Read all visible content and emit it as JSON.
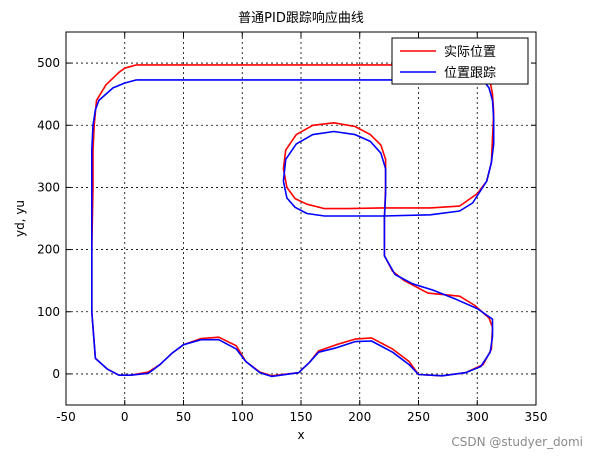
{
  "chart_data": {
    "type": "line",
    "title": "普通PID跟踪响应曲线",
    "xlabel": "x",
    "ylabel": "yd, yu",
    "xlim": [
      -50,
      350
    ],
    "ylim": [
      -50,
      550
    ],
    "xticks": [
      -50,
      0,
      50,
      100,
      150,
      200,
      250,
      300,
      350
    ],
    "yticks": [
      0,
      100,
      200,
      300,
      400,
      500
    ],
    "grid": true,
    "grid_style": "dotted",
    "legend_position": "top-right",
    "series": [
      {
        "name": "实际位置",
        "color": "#ff0000",
        "points": [
          [
            10,
            497
          ],
          [
            60,
            497
          ],
          [
            100,
            497
          ],
          [
            150,
            497
          ],
          [
            200,
            497
          ],
          [
            250,
            497
          ],
          [
            305,
            496
          ],
          [
            310,
            480
          ],
          [
            313,
            450
          ],
          [
            314,
            420
          ],
          [
            313,
            380
          ],
          [
            312,
            340
          ],
          [
            308,
            310
          ],
          [
            300,
            290
          ],
          [
            285,
            270
          ],
          [
            260,
            267
          ],
          [
            220,
            267
          ],
          [
            190,
            266
          ],
          [
            170,
            266
          ],
          [
            155,
            273
          ],
          [
            145,
            282
          ],
          [
            138,
            300
          ],
          [
            135,
            330
          ],
          [
            137,
            360
          ],
          [
            146,
            385
          ],
          [
            160,
            400
          ],
          [
            178,
            404
          ],
          [
            196,
            398
          ],
          [
            209,
            385
          ],
          [
            218,
            368
          ],
          [
            222,
            345
          ],
          [
            222,
            300
          ],
          [
            221,
            250
          ],
          [
            221,
            190
          ],
          [
            228,
            165
          ],
          [
            238,
            150
          ],
          [
            258,
            130
          ],
          [
            285,
            125
          ],
          [
            298,
            110
          ],
          [
            310,
            90
          ],
          [
            313,
            75
          ],
          [
            312,
            40
          ],
          [
            305,
            15
          ],
          [
            290,
            2
          ],
          [
            270,
            -3
          ],
          [
            250,
            -1
          ],
          [
            242,
            20
          ],
          [
            228,
            40
          ],
          [
            210,
            58
          ],
          [
            196,
            56
          ],
          [
            180,
            47
          ],
          [
            165,
            37
          ],
          [
            157,
            18
          ],
          [
            148,
            2
          ],
          [
            125,
            -3
          ],
          [
            115,
            3
          ],
          [
            103,
            20
          ],
          [
            95,
            45
          ],
          [
            80,
            59
          ],
          [
            65,
            57
          ],
          [
            50,
            47
          ],
          [
            40,
            33
          ],
          [
            30,
            15
          ],
          [
            20,
            3
          ],
          [
            5,
            -2
          ],
          [
            -5,
            -2
          ],
          [
            -15,
            8
          ],
          [
            -25,
            25
          ],
          [
            -28,
            100
          ],
          [
            -28,
            200
          ],
          [
            -27,
            300
          ],
          [
            -27,
            360
          ],
          [
            -26,
            400
          ],
          [
            -24,
            440
          ],
          [
            -16,
            465
          ],
          [
            -5,
            485
          ],
          [
            0,
            492
          ]
        ]
      },
      {
        "name": "位置跟踪",
        "color": "#0000ff",
        "points": [
          [
            10,
            473
          ],
          [
            60,
            473
          ],
          [
            100,
            473
          ],
          [
            150,
            473
          ],
          [
            200,
            473
          ],
          [
            250,
            473
          ],
          [
            305,
            473
          ],
          [
            310,
            460
          ],
          [
            313,
            440
          ],
          [
            314,
            410
          ],
          [
            314,
            370
          ],
          [
            312,
            340
          ],
          [
            308,
            310
          ],
          [
            296,
            275
          ],
          [
            285,
            262
          ],
          [
            260,
            256
          ],
          [
            220,
            254
          ],
          [
            190,
            254
          ],
          [
            170,
            254
          ],
          [
            155,
            258
          ],
          [
            145,
            268
          ],
          [
            138,
            283
          ],
          [
            135,
            310
          ],
          [
            137,
            345
          ],
          [
            146,
            370
          ],
          [
            160,
            385
          ],
          [
            178,
            390
          ],
          [
            196,
            385
          ],
          [
            209,
            374
          ],
          [
            218,
            355
          ],
          [
            222,
            330
          ],
          [
            222,
            290
          ],
          [
            221,
            250
          ],
          [
            221,
            190
          ],
          [
            230,
            160
          ],
          [
            245,
            145
          ],
          [
            262,
            135
          ],
          [
            282,
            120
          ],
          [
            300,
            105
          ],
          [
            313,
            88
          ],
          [
            313,
            60
          ],
          [
            311,
            35
          ],
          [
            303,
            12
          ],
          [
            290,
            2
          ],
          [
            270,
            -3
          ],
          [
            250,
            -1
          ],
          [
            242,
            15
          ],
          [
            228,
            35
          ],
          [
            210,
            53
          ],
          [
            196,
            52
          ],
          [
            180,
            42
          ],
          [
            165,
            35
          ],
          [
            157,
            18
          ],
          [
            148,
            2
          ],
          [
            125,
            -4
          ],
          [
            115,
            2
          ],
          [
            103,
            20
          ],
          [
            95,
            40
          ],
          [
            80,
            55
          ],
          [
            65,
            55
          ],
          [
            50,
            47
          ],
          [
            40,
            33
          ],
          [
            30,
            15
          ],
          [
            20,
            1
          ],
          [
            5,
            -2
          ],
          [
            -5,
            -2
          ],
          [
            -15,
            8
          ],
          [
            -25,
            25
          ],
          [
            -28,
            100
          ],
          [
            -28,
            200
          ],
          [
            -28,
            300
          ],
          [
            -28,
            360
          ],
          [
            -27,
            400
          ],
          [
            -25,
            425
          ],
          [
            -22,
            440
          ],
          [
            -10,
            460
          ],
          [
            0,
            468
          ]
        ]
      }
    ]
  },
  "watermark": "CSDN @studyer_domi"
}
